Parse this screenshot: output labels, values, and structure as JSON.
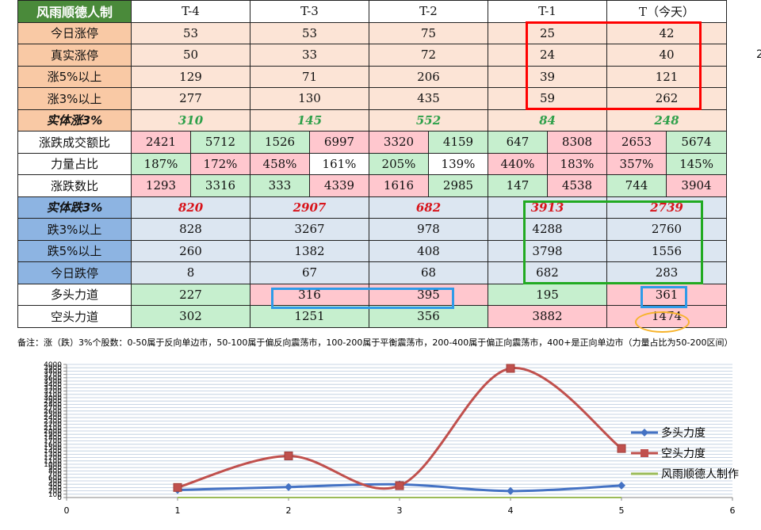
{
  "table": {
    "title": "风雨顺德人制",
    "headers": [
      "T-4",
      "T-3",
      "T-2",
      "T-1",
      "T（今天）"
    ],
    "up_rows": [
      {
        "label": "今日涨停",
        "values": [
          "53",
          "53",
          "75",
          "25",
          "42"
        ]
      },
      {
        "label": "真实涨停",
        "values": [
          "50",
          "33",
          "72",
          "24",
          "40"
        ]
      },
      {
        "label": "涨5%以上",
        "values": [
          "129",
          "71",
          "206",
          "39",
          "121"
        ]
      },
      {
        "label": "涨3%以上",
        "values": [
          "277",
          "130",
          "435",
          "59",
          "262"
        ]
      }
    ],
    "solid_up": {
      "label": "实体涨3%",
      "values": [
        "310",
        "145",
        "552",
        "84",
        "248"
      ]
    },
    "ratio_rows": [
      {
        "label": "涨跌成交额比",
        "values": [
          "2421",
          "5712",
          "1526",
          "6997",
          "3320",
          "4159",
          "647",
          "8308",
          "2653",
          "5674"
        ]
      },
      {
        "label": "力量占比",
        "values": [
          "187%",
          "172%",
          "458%",
          "161%",
          "205%",
          "139%",
          "440%",
          "183%",
          "357%",
          "145%"
        ]
      },
      {
        "label": "涨跌数比",
        "values": [
          "1293",
          "3316",
          "333",
          "4339",
          "1616",
          "2985",
          "147",
          "4538",
          "744",
          "3904"
        ]
      }
    ],
    "solid_down": {
      "label": "实体跌3%",
      "values": [
        "820",
        "2907",
        "682",
        "3913",
        "2739"
      ]
    },
    "down_rows": [
      {
        "label": "跌3%以上",
        "values": [
          "828",
          "3267",
          "978",
          "4288",
          "2760"
        ]
      },
      {
        "label": "跌5%以上",
        "values": [
          "260",
          "1382",
          "408",
          "3798",
          "1556"
        ]
      },
      {
        "label": "今日跌停",
        "values": [
          "8",
          "67",
          "68",
          "682",
          "283"
        ]
      }
    ],
    "bull": {
      "label": "多头力道",
      "values": [
        "227",
        "316",
        "395",
        "195",
        "361"
      ]
    },
    "bear": {
      "label": "空头力道",
      "values": [
        "302",
        "1251",
        "356",
        "3882",
        "1474"
      ]
    }
  },
  "side_digit": "2",
  "note": "备注：涨（跌）3%个股数：0-50属于反向单边市，50-100属于偏反向震荡市，100-200属于平衡震荡市，200-400属于偏正向震荡市，400+是正向单边市（力量占比为50-200区间）",
  "colors": {
    "bull_line": "#4472c4",
    "bear_line": "#c0504d",
    "author_line": "#9bbb59",
    "red_box": "#ff0000",
    "green_box": "#22aa22",
    "blue_box": "#2f9be8",
    "orange_ellipse": "#f7b32b"
  },
  "chart_data": {
    "type": "line",
    "x_ticks": [
      "0",
      "1",
      "2",
      "3",
      "4",
      "5",
      "6"
    ],
    "xlim": [
      0,
      6
    ],
    "ylim": [
      0,
      4000
    ],
    "x": [
      1,
      2,
      3,
      4,
      5
    ],
    "series": [
      {
        "name": "多头力度",
        "values": [
          227,
          316,
          395,
          195,
          361
        ],
        "color": "#4472c4",
        "marker": "diamond"
      },
      {
        "name": "空头力度",
        "values": [
          302,
          1251,
          356,
          3882,
          1474
        ],
        "color": "#c0504d",
        "marker": "square"
      },
      {
        "name": "风雨顺德人制作",
        "values": [
          0,
          0,
          0,
          0,
          0
        ],
        "color": "#9bbb59",
        "marker": "none"
      }
    ],
    "legend_position": "right",
    "grid": true,
    "smooth": true
  }
}
